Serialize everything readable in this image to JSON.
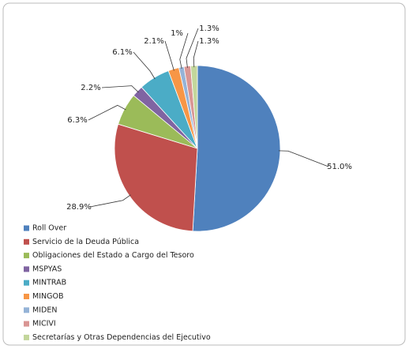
{
  "chart_data": {
    "type": "pie",
    "categories": [
      "Roll Over",
      "Servicio de la Deuda Pública",
      "Obligaciones del Estado a Cargo del Tesoro",
      "MSPYAS",
      "MINTRAB",
      "MINGOB",
      "MIDEN",
      "MICIVI",
      "Secretarías y Otras Dependencias del Ejecutivo"
    ],
    "values": [
      51.0,
      28.9,
      6.3,
      2.2,
      6.1,
      2.1,
      1,
      1.3,
      1.3
    ],
    "value_labels": [
      "51.0%",
      "28.9%",
      "6.3%",
      "2.2%",
      "6.1%",
      "2.1%",
      "1%",
      "1.3%",
      "1.3%"
    ],
    "colors": [
      "#4f81bd",
      "#c0504d",
      "#9bbb59",
      "#8064a2",
      "#4bacc6",
      "#f79646",
      "#95b3d7",
      "#d99694",
      "#c3d69b"
    ],
    "legend": "bottom-left"
  }
}
